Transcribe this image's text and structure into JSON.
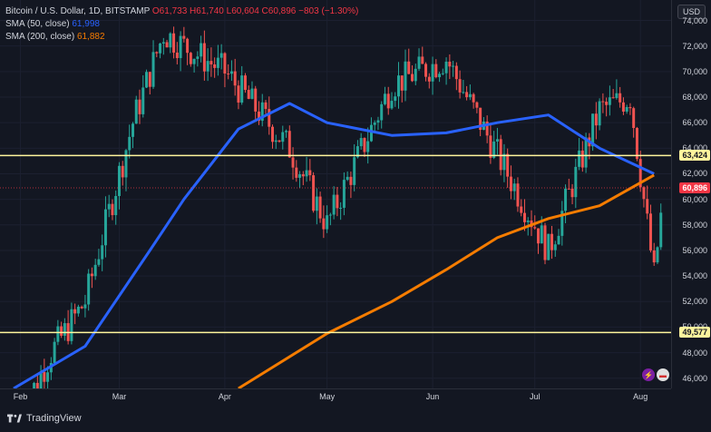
{
  "legend": {
    "symbol": "Bitcoin / U.S. Dollar, 1D, BITSTAMP",
    "ohlc": "O61,733  H61,740  L60,604  C60,896  −803 (−1.30%)",
    "sma50_label": "SMA (50, close)",
    "sma50_value": "61,998",
    "sma200_label": "SMA (200, close)",
    "sma200_value": "61,882"
  },
  "currency_button": "USD",
  "y_ticks": [
    "74,000",
    "72,000",
    "70,000",
    "68,000",
    "66,000",
    "64,000",
    "62,000",
    "60,000",
    "58,000",
    "56,000",
    "54,000",
    "52,000",
    "50,000",
    "48,000",
    "46,000"
  ],
  "x_ticks": [
    "Feb",
    "Mar",
    "Apr",
    "May",
    "Jun",
    "Jul",
    "Aug"
  ],
  "badges": {
    "upper_level": "63,424",
    "last_price": "60,896",
    "lower_level": "49,577"
  },
  "footer_brand": "TradingView",
  "colors": {
    "up": "#26a69a",
    "down": "#ef5350",
    "sma50": "#2962ff",
    "sma200": "#f57c00",
    "level": "#fff59d"
  },
  "chart_data": {
    "type": "candlestick",
    "title": "Bitcoin / U.S. Dollar, 1D, BITSTAMP",
    "ylim": [
      45200,
      75600
    ],
    "horizontal_levels": [
      63424,
      49577
    ],
    "series": [
      {
        "name": "SMA (50, close)",
        "x": [
          "2024-01-30",
          "2024-02-20",
          "2024-03-10",
          "2024-03-20",
          "2024-04-05",
          "2024-04-20",
          "2024-05-01",
          "2024-05-20",
          "2024-06-05",
          "2024-06-20",
          "2024-07-05",
          "2024-07-20",
          "2024-08-05"
        ],
        "values": [
          45200,
          48500,
          56000,
          60000,
          65500,
          67500,
          66000,
          65000,
          65200,
          66000,
          66600,
          64000,
          62000
        ]
      },
      {
        "name": "SMA (200, close)",
        "x": [
          "2024-04-05",
          "2024-05-01",
          "2024-05-20",
          "2024-06-05",
          "2024-06-20",
          "2024-07-05",
          "2024-07-20",
          "2024-08-05"
        ],
        "values": [
          45200,
          49500,
          52000,
          54500,
          57000,
          58500,
          59500,
          61900
        ]
      }
    ],
    "candles_sample": [
      {
        "date": "2024-02-01",
        "close": 43000
      },
      {
        "date": "2024-02-10",
        "close": 48000
      },
      {
        "date": "2024-02-20",
        "close": 52000
      },
      {
        "date": "2024-03-05",
        "close": 66000
      },
      {
        "date": "2024-03-14",
        "close": 73000
      },
      {
        "date": "2024-04-01",
        "close": 70000
      },
      {
        "date": "2024-04-20",
        "close": 64000
      },
      {
        "date": "2024-05-01",
        "close": 58000
      },
      {
        "date": "2024-05-20",
        "close": 69000
      },
      {
        "date": "2024-06-05",
        "close": 71000
      },
      {
        "date": "2024-06-25",
        "close": 61000
      },
      {
        "date": "2024-07-05",
        "close": 56000
      },
      {
        "date": "2024-07-20",
        "close": 67000
      },
      {
        "date": "2024-07-29",
        "close": 68000
      },
      {
        "date": "2024-08-05",
        "close": 54000
      },
      {
        "date": "2024-08-08",
        "close": 60896
      }
    ]
  }
}
